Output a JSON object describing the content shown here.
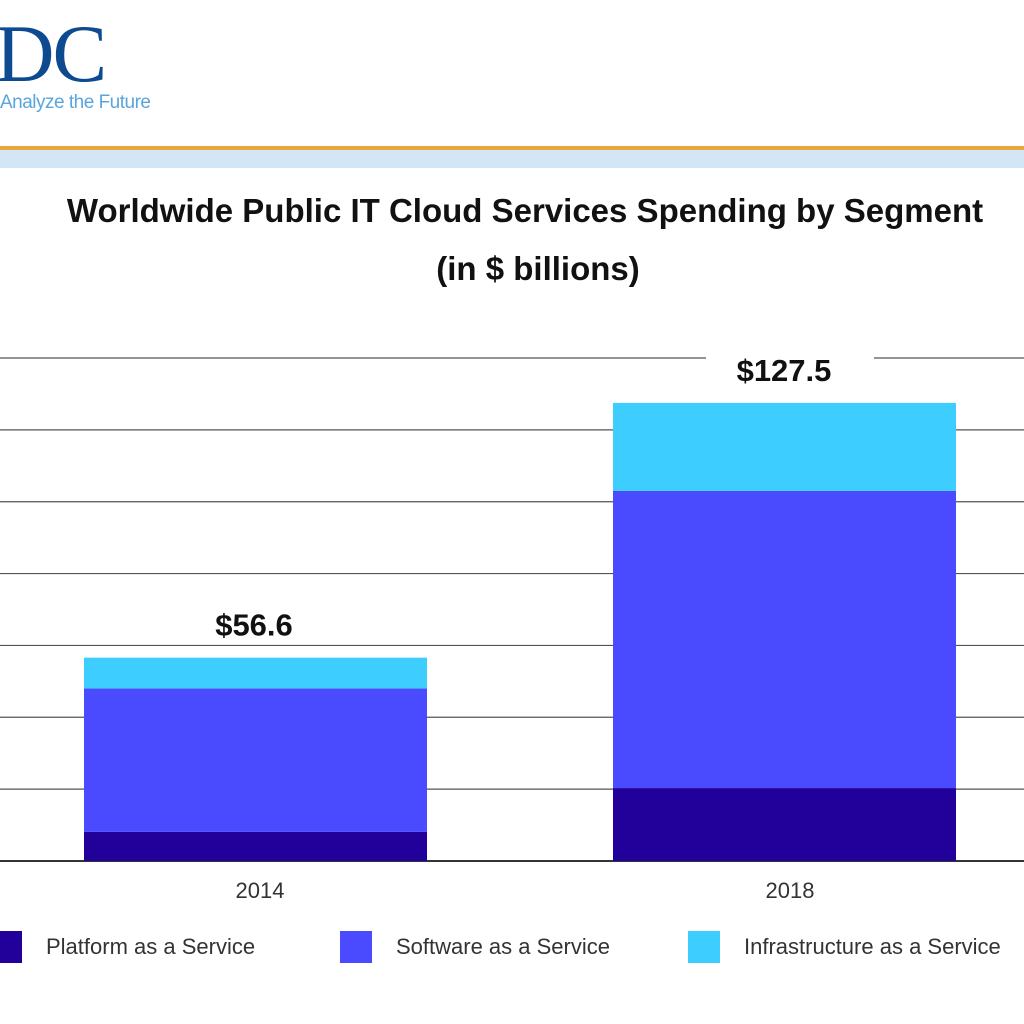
{
  "logo": {
    "text": "IDC",
    "tagline": "Analyze the Future"
  },
  "chart_data": {
    "type": "bar",
    "stacked": true,
    "title": "Worldwide Public IT Cloud Services Spending by Segment",
    "subtitle": "(in $ billions)",
    "categories": [
      "2014",
      "2018"
    ],
    "totals": [
      "$56.6",
      "$127.5"
    ],
    "total_values": [
      56.6,
      127.5
    ],
    "series": [
      {
        "name": "Platform as a Service",
        "color": "#22009a",
        "values": [
          8.1,
          20.3
        ]
      },
      {
        "name": "Software as a Service",
        "color": "#4a4aff",
        "values": [
          39.9,
          82.7
        ]
      },
      {
        "name": "Infrastructure as a Service",
        "color": "#3ecdff",
        "values": [
          8.6,
          24.5
        ]
      }
    ],
    "ylim": [
      0,
      140
    ],
    "ygrid_step": 20,
    "grid": true,
    "legend": "bottom"
  }
}
